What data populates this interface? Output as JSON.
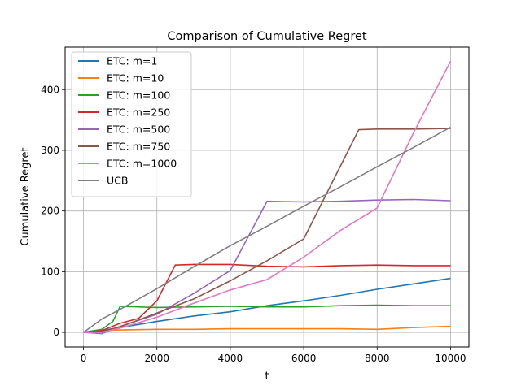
{
  "chart_data": {
    "type": "line",
    "title": "Comparison of Cumulative Regret",
    "xlabel": "t",
    "ylabel": "Cumulative Regret",
    "xlim": [
      -500,
      10500
    ],
    "ylim": [
      -24,
      470
    ],
    "xticks": [
      0,
      2000,
      4000,
      6000,
      8000,
      10000
    ],
    "yticks": [
      0,
      100,
      200,
      300,
      400
    ],
    "grid": true,
    "legend_position": "top-left",
    "series": [
      {
        "name": "ETC: m=1",
        "color": "#1f77b4",
        "x": [
          0,
          500,
          1000,
          2000,
          3000,
          4000,
          5000,
          6000,
          7000,
          8000,
          9000,
          10000
        ],
        "y": [
          0,
          3,
          8,
          18,
          27,
          34,
          44,
          52,
          61,
          71,
          80,
          89
        ]
      },
      {
        "name": "ETC: m=10",
        "color": "#ff7f0e",
        "x": [
          0,
          500,
          1000,
          2000,
          3000,
          4000,
          5000,
          6000,
          7000,
          8000,
          9000,
          10000
        ],
        "y": [
          0,
          3,
          4,
          5,
          5,
          6,
          6,
          6,
          6,
          5,
          8,
          10
        ]
      },
      {
        "name": "ETC: m=100",
        "color": "#2ca02c",
        "x": [
          0,
          500,
          800,
          1000,
          2000,
          3000,
          4000,
          5000,
          6000,
          7000,
          8000,
          9000,
          10000
        ],
        "y": [
          0,
          5,
          18,
          43,
          41,
          42,
          43,
          42,
          42,
          44,
          45,
          44,
          44
        ]
      },
      {
        "name": "ETC: m=250",
        "color": "#d62728",
        "x": [
          0,
          500,
          1000,
          1500,
          2000,
          2500,
          3000,
          4000,
          5000,
          6000,
          7000,
          8000,
          9000,
          10000
        ],
        "y": [
          0,
          3,
          15,
          23,
          52,
          111,
          112,
          112,
          109,
          108,
          110,
          111,
          110,
          110
        ]
      },
      {
        "name": "ETC: m=500",
        "color": "#9467bd",
        "x": [
          0,
          500,
          1000,
          2000,
          3000,
          4000,
          5000,
          6000,
          7000,
          8000,
          9000,
          10000
        ],
        "y": [
          0,
          -2,
          10,
          30,
          64,
          102,
          216,
          215,
          216,
          218,
          219,
          217
        ]
      },
      {
        "name": "ETC: m=750",
        "color": "#8c564b",
        "x": [
          0,
          500,
          1000,
          2000,
          3000,
          4000,
          5000,
          6000,
          7500,
          8000,
          9000,
          10000
        ],
        "y": [
          0,
          2,
          9,
          32,
          55,
          85,
          118,
          154,
          334,
          335,
          335,
          336
        ]
      },
      {
        "name": "ETC: m=1000",
        "color": "#e377c2",
        "x": [
          0,
          500,
          1000,
          2000,
          3000,
          4000,
          5000,
          6000,
          7000,
          8000,
          9000,
          10000
        ],
        "y": [
          0,
          0,
          7,
          25,
          48,
          70,
          87,
          124,
          168,
          205,
          330,
          447
        ]
      },
      {
        "name": "UCB",
        "color": "#7f7f7f",
        "x": [
          0,
          500,
          1000,
          2000,
          3000,
          4000,
          5000,
          6000,
          7000,
          8000,
          9000,
          10000
        ],
        "y": [
          0,
          22,
          38,
          72,
          108,
          143,
          175,
          208,
          240,
          273,
          305,
          338
        ]
      }
    ]
  }
}
